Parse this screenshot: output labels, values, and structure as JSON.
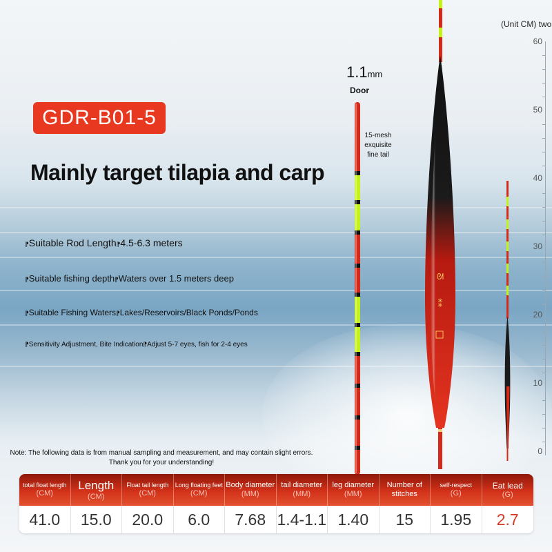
{
  "model": "GDR-B01-5",
  "headline": "Mainly target tilapia and carp",
  "specs": [
    {
      "mark": "⁋",
      "label": "Suitable Rod Length",
      "mark2": "⁋",
      "value": "4.5-6.3 meters"
    },
    {
      "mark": "⁋",
      "label": "Suitable fishing depth",
      "mark2": "⁋",
      "value": "Waters over 1.5 meters deep"
    },
    {
      "mark": "⁋",
      "label": "Suitable Fishing Waters",
      "mark2": "⁋",
      "value": "Lakes/Reservoirs/Black Ponds/Ponds"
    },
    {
      "mark": "⁋",
      "label": "Sensitivity Adjustment, Bite Indication",
      "mark2": "⁋",
      "value": "Adjust 5-7 eyes, fish for 2-4 eyes"
    }
  ],
  "tip": {
    "size": "1.1",
    "unit": "mm",
    "door": "Door",
    "mesh": "15-mesh exquisite fine tail"
  },
  "ruler": {
    "unit_label": "(Unit CM) two",
    "ticks": [
      "60",
      "50",
      "40",
      "30",
      "20",
      "10",
      "0"
    ]
  },
  "note": "Note: The following data is from manual sampling and measurement, and may contain slight errors. Thank you for your understanding!",
  "table": {
    "headers": [
      {
        "label": "total float length",
        "unit": "(CM)"
      },
      {
        "label": "Length",
        "unit": "(CM)"
      },
      {
        "label": "Float tail length",
        "unit": "(CM)"
      },
      {
        "label": "Long floating feet",
        "unit": "(CM)"
      },
      {
        "label": "Body diameter",
        "unit": "(MM)"
      },
      {
        "label": "tail diameter",
        "unit": "(MM)"
      },
      {
        "label": "leg diameter",
        "unit": "(MM)"
      },
      {
        "label": "Number of stitches",
        "unit": ""
      },
      {
        "label": "self-respect",
        "unit": "(G)"
      },
      {
        "label": "Eat lead",
        "unit": "(G)"
      }
    ],
    "values": [
      "41.0",
      "15.0",
      "20.0",
      "6.0",
      "7.68",
      "1.4-1.1",
      "1.40",
      "15",
      "1.95",
      "2.7"
    ]
  },
  "colors": {
    "accent": "#e8381f",
    "float_red": "#d42a1a",
    "float_green": "#c6f21c",
    "float_black": "#111111"
  }
}
